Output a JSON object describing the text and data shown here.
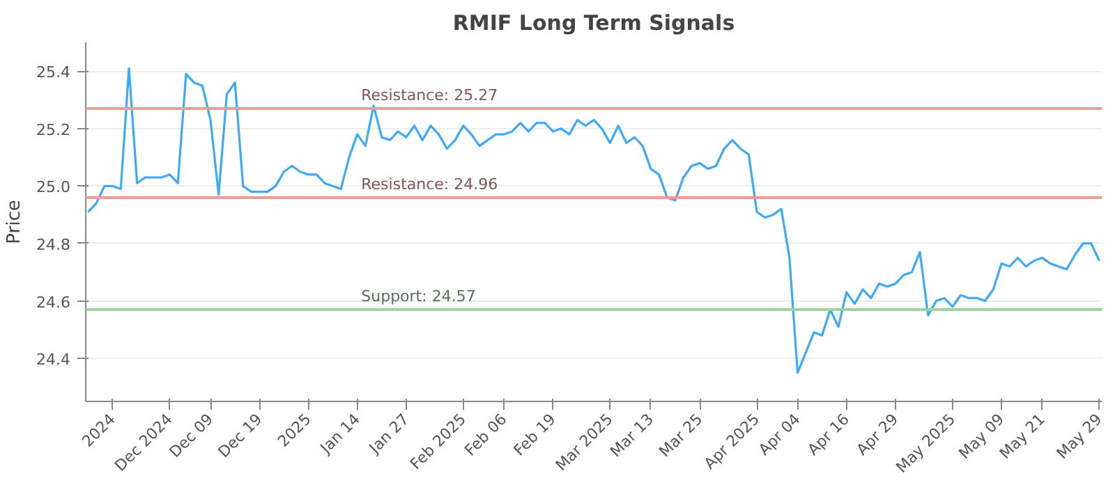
{
  "chart_data": {
    "type": "line",
    "title": "RMIF Long Term Signals",
    "ylabel": "Price",
    "categories": [
      null,
      null,
      null,
      "2024",
      null,
      null,
      null,
      null,
      null,
      null,
      "Dec 2024",
      null,
      null,
      null,
      null,
      "Dec 09",
      null,
      null,
      null,
      null,
      null,
      "Dec 19",
      null,
      null,
      null,
      null,
      null,
      "2025",
      null,
      null,
      null,
      null,
      null,
      "Jan 14",
      null,
      null,
      null,
      null,
      null,
      "Jan 27",
      null,
      null,
      null,
      null,
      null,
      null,
      "Feb 2025",
      null,
      null,
      null,
      null,
      "Feb 06",
      null,
      null,
      null,
      null,
      null,
      "Feb 19",
      null,
      null,
      null,
      null,
      null,
      null,
      "Mar 2025",
      null,
      null,
      null,
      null,
      "Mar 13",
      null,
      null,
      null,
      null,
      null,
      "Mar 25",
      null,
      null,
      null,
      null,
      null,
      null,
      "Apr 2025",
      null,
      null,
      null,
      null,
      "Apr 04",
      null,
      null,
      null,
      null,
      null,
      "Apr 16",
      null,
      null,
      null,
      null,
      null,
      "Apr 29",
      null,
      null,
      null,
      null,
      null,
      null,
      "May 2025",
      null,
      null,
      null,
      null,
      null,
      "May 09",
      null,
      null,
      null,
      null,
      "May 21",
      null,
      null,
      null,
      null,
      null,
      null,
      "May 29"
    ],
    "series": [
      {
        "color": "#3fa9f5",
        "values": [
          24.91,
          24.94,
          25.0,
          25.0,
          24.99,
          25.41,
          25.01,
          25.03,
          25.03,
          25.03,
          25.04,
          25.01,
          25.39,
          25.36,
          25.35,
          25.23,
          24.97,
          25.32,
          25.36,
          25.0,
          24.98,
          24.98,
          24.98,
          25.0,
          25.05,
          25.07,
          25.05,
          25.04,
          25.04,
          25.01,
          25.0,
          24.99,
          25.1,
          25.18,
          25.14,
          25.28,
          25.17,
          25.16,
          25.19,
          25.17,
          25.21,
          25.16,
          25.21,
          25.18,
          25.13,
          25.16,
          25.21,
          25.18,
          25.14,
          25.16,
          25.18,
          25.18,
          25.19,
          25.22,
          25.19,
          25.22,
          25.22,
          25.19,
          25.2,
          25.18,
          25.23,
          25.21,
          25.23,
          25.2,
          25.15,
          25.21,
          25.15,
          25.17,
          25.14,
          25.06,
          25.04,
          24.96,
          24.95,
          25.03,
          25.07,
          25.08,
          25.06,
          25.07,
          25.13,
          25.16,
          25.13,
          25.11,
          24.91,
          24.89,
          24.9,
          24.92,
          24.75,
          24.35,
          24.42,
          24.49,
          24.48,
          24.57,
          24.51,
          24.63,
          24.59,
          24.64,
          24.61,
          24.66,
          24.65,
          24.66,
          24.69,
          24.7,
          24.77,
          24.55,
          24.6,
          24.61,
          24.58,
          24.62,
          24.61,
          24.61,
          24.6,
          24.64,
          24.73,
          24.72,
          24.75,
          24.72,
          24.74,
          24.75,
          24.73,
          24.72,
          24.71,
          24.76,
          24.8,
          24.8,
          24.74
        ]
      }
    ],
    "ylim": [
      24.25,
      25.5
    ],
    "yticks": [
      24.4,
      24.6,
      24.8,
      {
        "value": 25.0,
        "label": "25.0"
      },
      25.2,
      25.4
    ],
    "grid": "y",
    "marker": "none",
    "line_style": "solid",
    "ref_lines": [
      {
        "axis": "y",
        "value": 25.27,
        "label": "Resistance: 25.27",
        "color": "#f29a9a"
      },
      {
        "axis": "y",
        "value": 24.96,
        "label": "Resistance: 24.96",
        "color": "#f29a9a"
      },
      {
        "axis": "y",
        "value": 24.57,
        "label": "Support: 24.57",
        "color": "#9fd19f"
      }
    ]
  }
}
